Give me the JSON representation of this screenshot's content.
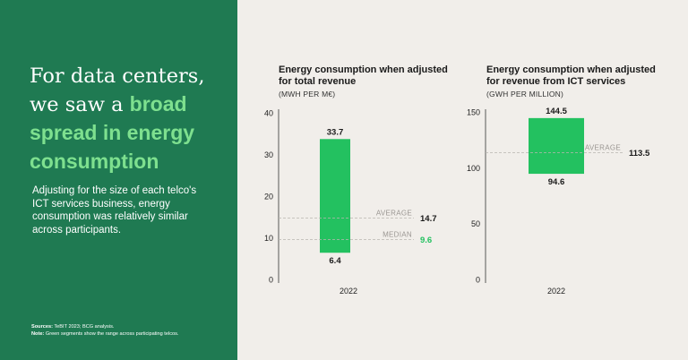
{
  "headline": {
    "line1": "For data centers,",
    "line2_plain": "we saw a ",
    "line2_accent": "broad",
    "line3": "spread in energy",
    "line4": "consumption"
  },
  "subtext": "Adjusting for the size of each telco's ICT services business, energy consumption was relatively similar across participants.",
  "notes": {
    "sources_label": "Sources:",
    "sources_text": " TeBIT 2023; BCG analysis.",
    "note_label": "Note:",
    "note_text": " Green segments show the range across participating telcos."
  },
  "colors": {
    "panel": "#1f7a52",
    "bar": "#23c160",
    "accent": "#7ee08f",
    "median_value": "#23c160"
  },
  "chart_data": [
    {
      "type": "bar",
      "title": "Energy consumption when adjusted for total revenue",
      "title_line1": "Energy consumption when adjusted",
      "title_line2": "for total revenue",
      "unit": "(MWH PER M€)",
      "categories": [
        "2022"
      ],
      "range": {
        "min": 6.4,
        "max": 33.7,
        "min_label": "6.4",
        "max_label": "33.7"
      },
      "ylim": [
        0,
        40
      ],
      "yticks": [
        0,
        10,
        20,
        30,
        40
      ],
      "reference_lines": [
        {
          "name": "AVERAGE",
          "value": 14.7,
          "label": "14.7",
          "highlight": false
        },
        {
          "name": "MEDIAN",
          "value": 9.6,
          "label": "9.6",
          "highlight": true
        }
      ]
    },
    {
      "type": "bar",
      "title": "Energy consumption when adjusted for revenue from ICT services",
      "title_line1": "Energy consumption when adjusted",
      "title_line2": "for revenue from ICT services",
      "unit": "(GWH PER MILLION)",
      "categories": [
        "2022"
      ],
      "range": {
        "min": 94.6,
        "max": 144.5,
        "min_label": "94.6",
        "max_label": "144.5"
      },
      "ylim": [
        0,
        150
      ],
      "yticks": [
        0,
        50,
        100,
        150
      ],
      "reference_lines": [
        {
          "name": "AVERAGE",
          "value": 113.5,
          "label": "113.5",
          "highlight": false
        }
      ]
    }
  ]
}
